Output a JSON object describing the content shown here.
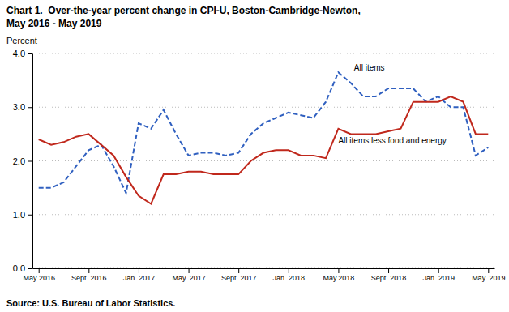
{
  "chart_data": {
    "type": "line",
    "title": "Chart 1.  Over-the-year percent change in CPI-U, Boston-Cambridge-Newton,",
    "subtitle": "May 2016 - May 2019",
    "y_label": "Percent",
    "source": "Source: U.S. Bureau of Labor Statistics.",
    "categories": [
      "May 2016",
      null,
      null,
      null,
      "Sept. 2016",
      null,
      null,
      null,
      "Jan. 2017",
      null,
      null,
      null,
      "May. 2017",
      null,
      null,
      null,
      "Sept. 2017",
      null,
      null,
      null,
      "Jan. 2018",
      null,
      null,
      null,
      "May.2018",
      null,
      null,
      null,
      "Sept. 2018",
      null,
      null,
      null,
      "Jan. 2019",
      null,
      null,
      null,
      "May. 2019"
    ],
    "series": [
      {
        "name": "All items",
        "color": "#3060c0",
        "line_style": "dashed",
        "values": [
          1.5,
          1.5,
          1.6,
          1.9,
          2.2,
          2.3,
          1.9,
          1.4,
          2.7,
          2.6,
          2.95,
          2.5,
          2.1,
          2.15,
          2.15,
          2.1,
          2.15,
          2.5,
          2.7,
          2.8,
          2.9,
          2.85,
          2.8,
          3.1,
          3.65,
          3.45,
          3.2,
          3.2,
          3.35,
          3.35,
          3.35,
          3.1,
          3.2,
          3.0,
          3.0,
          2.1,
          2.25
        ]
      },
      {
        "name": "All items less food and energy",
        "color": "#c0281c",
        "line_style": "solid",
        "values": [
          2.4,
          2.3,
          2.35,
          2.45,
          2.5,
          2.3,
          2.1,
          1.7,
          1.35,
          1.2,
          1.75,
          1.75,
          1.8,
          1.8,
          1.75,
          1.75,
          1.75,
          2.0,
          2.15,
          2.2,
          2.2,
          2.1,
          2.1,
          2.05,
          2.6,
          2.5,
          2.5,
          2.5,
          2.55,
          2.6,
          3.1,
          3.1,
          3.1,
          3.2,
          3.1,
          2.5,
          2.5
        ]
      }
    ],
    "ylim": [
      0.0,
      4.0
    ],
    "yticks": [
      {
        "value": 0,
        "label": "0.0"
      },
      {
        "value": 1,
        "label": "1.0"
      },
      {
        "value": 2,
        "label": "2.0"
      },
      {
        "value": 3,
        "label": "3.0"
      },
      {
        "value": 4,
        "label": "4.0"
      }
    ],
    "grid": true
  }
}
